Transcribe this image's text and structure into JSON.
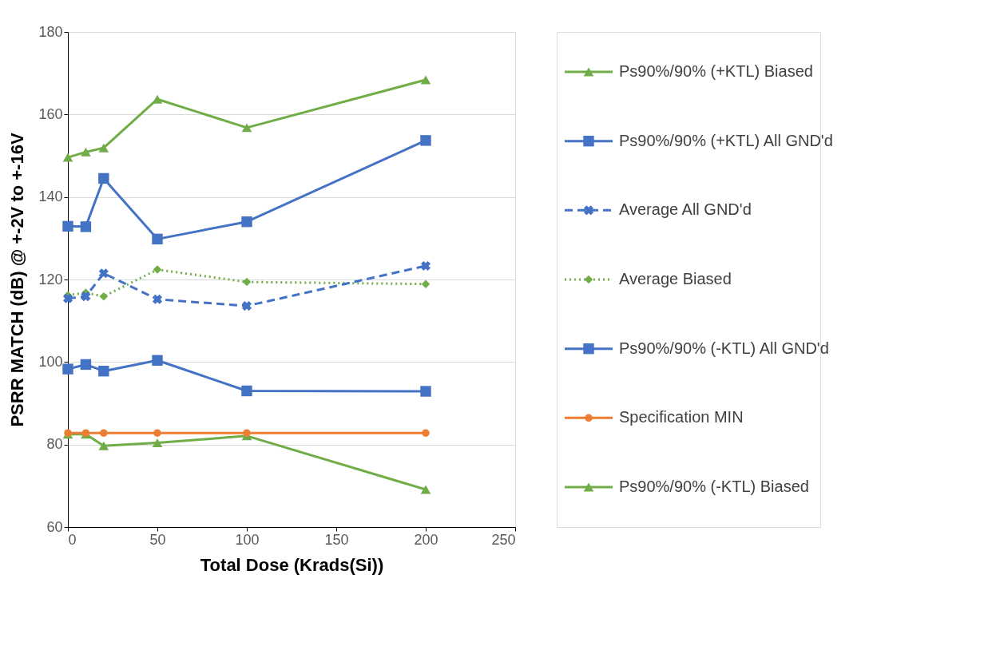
{
  "chart_data": {
    "type": "line",
    "xlabel": "Total Dose (Krads(Si))",
    "ylabel": "PSRR MATCH (dB) @ +-2V to +-16V",
    "x": [
      0,
      10,
      20,
      50,
      100,
      200
    ],
    "xlim": [
      0,
      250
    ],
    "xticks": [
      0,
      50,
      100,
      150,
      200,
      250
    ],
    "ylim": [
      60,
      180
    ],
    "yticks": [
      60,
      80,
      100,
      120,
      140,
      160,
      180
    ],
    "grid": "y",
    "legend": "right",
    "series": [
      {
        "name": "Ps90%/90% (+KTL) Biased",
        "color": "#70ad47",
        "marker": "triangle",
        "line_style": "solid",
        "values": [
          149.6,
          150.9,
          151.9,
          163.7,
          156.8,
          168.4
        ]
      },
      {
        "name": "Ps90%/90% (+KTL) All GND'd",
        "color": "#4472c4",
        "marker": "square",
        "line_style": "solid",
        "values": [
          132.9,
          132.8,
          144.5,
          129.8,
          134.0,
          153.7
        ]
      },
      {
        "name": "Average All GND'd",
        "color": "#4472c4",
        "marker": "cross",
        "line_style": "dashed",
        "values": [
          115.4,
          115.9,
          121.5,
          115.2,
          113.6,
          123.3
        ]
      },
      {
        "name": "Average Biased",
        "color": "#70ad47",
        "marker": "diamond",
        "line_style": "dotted",
        "values": [
          116.2,
          116.8,
          115.9,
          122.4,
          119.4,
          118.9
        ]
      },
      {
        "name": "Ps90%/90% (-KTL) All GND'd",
        "color": "#4472c4",
        "marker": "square",
        "line_style": "solid",
        "values": [
          98.3,
          99.4,
          97.8,
          100.4,
          93.0,
          92.9
        ]
      },
      {
        "name": "Specification MIN",
        "color": "#ed7d31",
        "marker": "circle",
        "line_style": "solid",
        "values": [
          82.8,
          82.8,
          82.8,
          82.8,
          82.8,
          82.8
        ]
      },
      {
        "name": "Ps90%/90% (-KTL) Biased",
        "color": "#70ad47",
        "marker": "triangle",
        "line_style": "solid",
        "values": [
          82.5,
          82.5,
          79.7,
          80.4,
          82.1,
          69.1
        ]
      }
    ]
  }
}
